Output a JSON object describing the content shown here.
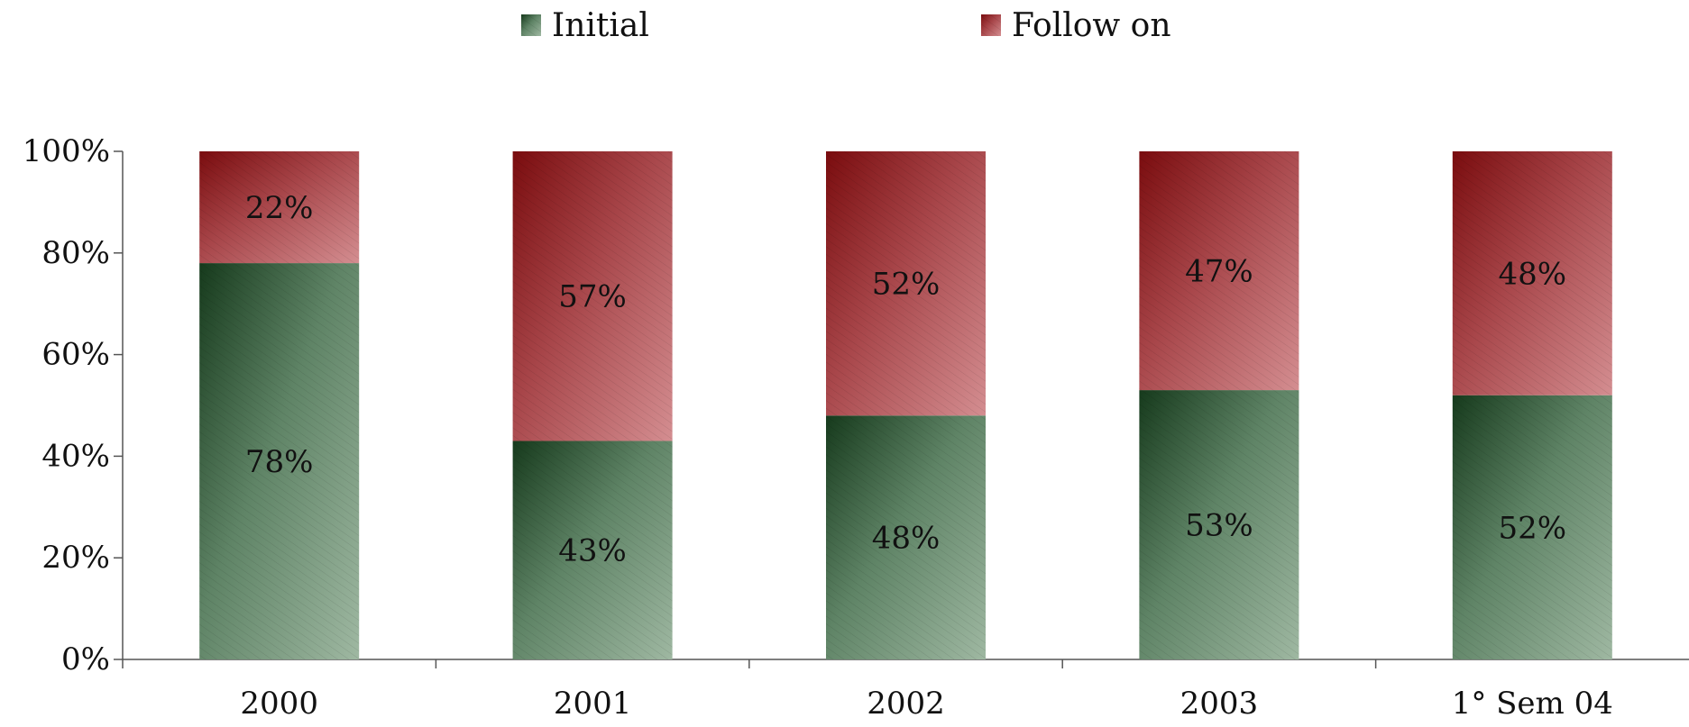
{
  "chart_data": {
    "type": "bar",
    "stacked": true,
    "categories": [
      "2000",
      "2001",
      "2002",
      "2003",
      "1° Sem 04"
    ],
    "series": [
      {
        "name": "Initial",
        "values": [
          78,
          43,
          48,
          53,
          52
        ],
        "labels": [
          "78%",
          "43%",
          "48%",
          "53%",
          "52%"
        ],
        "color": "#3f6b45"
      },
      {
        "name": "Follow on",
        "values": [
          22,
          57,
          52,
          47,
          48
        ],
        "labels": [
          "22%",
          "57%",
          "52%",
          "47%",
          "48%"
        ],
        "color": "#a8464a"
      }
    ],
    "ylim": [
      0,
      100
    ],
    "yticks": [
      "0%",
      "20%",
      "40%",
      "60%",
      "80%",
      "100%"
    ],
    "ytick_values": [
      0,
      20,
      40,
      60,
      80,
      100
    ],
    "title": "",
    "xlabel": "",
    "ylabel": "",
    "legend_position": "top",
    "grid": false
  }
}
